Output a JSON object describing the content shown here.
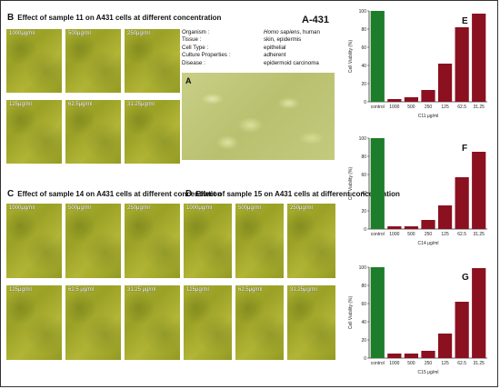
{
  "panel_b": {
    "letter": "B",
    "title": "Effect of sample 11 on A431 cells at different concentration",
    "labels": [
      "1000μg/ml",
      "500μg/ml",
      "250μg/ml",
      "125μg/ml",
      "62.5μg/ml",
      "31.25μg/ml"
    ]
  },
  "panel_c": {
    "letter": "C",
    "title": "Effect of sample 14 on A431 cells at different concentration",
    "labels": [
      "1000μg/ml",
      "500μg/ml",
      "250μg/ml",
      "125μg/ml",
      "62.5 μg/ml",
      "31.25 μg/ml"
    ]
  },
  "panel_d": {
    "letter": "D",
    "title": "Effect of sample 15 on A431 cells at different concentration",
    "labels": [
      "1000μg/ml",
      "500μg/ml",
      "250μg/ml",
      "125μg/ml",
      "62.5μg/ml",
      "31.25μg/ml"
    ]
  },
  "cell_line": {
    "name": "A-431",
    "panel_letter": "A",
    "rows": [
      {
        "key": "Organism :",
        "value_italic": "Homo sapiens",
        "value": ", human"
      },
      {
        "key": "Tissue :",
        "value_italic": "",
        "value": "skin, epidermis"
      },
      {
        "key": "Cell Type :",
        "value_italic": "",
        "value": "epithelial"
      },
      {
        "key": "Culture Properties :",
        "value_italic": "",
        "value": "adherent"
      },
      {
        "key": "Disease :",
        "value_italic": "",
        "value": "epidermoid carcinoma"
      }
    ]
  },
  "colors": {
    "control_bar": "#1e7d2a",
    "sample_bar": "#8b1020"
  },
  "chart_data": [
    {
      "type": "bar",
      "panel": "E",
      "categories": [
        "control",
        "1000",
        "500",
        "250",
        "125",
        "62.5",
        "31.25"
      ],
      "values": [
        100,
        3,
        5,
        13,
        42,
        82,
        97
      ],
      "xlabel": "C11 μg/ml",
      "ylabel": "Cell Viability (%)",
      "ylim": [
        0,
        100
      ],
      "yticks": [
        0,
        20,
        40,
        60,
        80,
        100
      ],
      "grid": false
    },
    {
      "type": "bar",
      "panel": "F",
      "categories": [
        "control",
        "1000",
        "500",
        "250",
        "125",
        "62.5",
        "31.25"
      ],
      "values": [
        100,
        3,
        3,
        10,
        26,
        57,
        85
      ],
      "xlabel": "C14 μg/ml",
      "ylabel": "Cell Viability (%)",
      "ylim": [
        0,
        100
      ],
      "yticks": [
        0,
        20,
        40,
        60,
        80,
        100
      ],
      "grid": false
    },
    {
      "type": "bar",
      "panel": "G",
      "categories": [
        "control",
        "1000",
        "500",
        "250",
        "125",
        "62.5",
        "31.25"
      ],
      "values": [
        100,
        5,
        5,
        8,
        27,
        62,
        99
      ],
      "xlabel": "C15 μg/ml",
      "ylabel": "Cell Viability (%)",
      "ylim": [
        0,
        100
      ],
      "yticks": [
        0,
        20,
        40,
        60,
        80,
        100
      ],
      "grid": false
    }
  ]
}
